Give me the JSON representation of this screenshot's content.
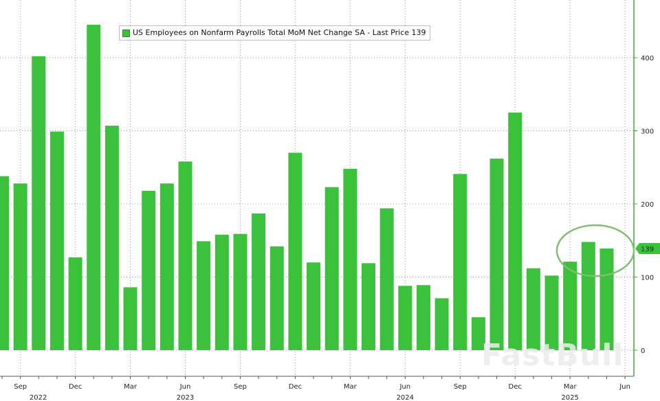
{
  "chart_data": {
    "type": "bar",
    "title": "",
    "legend": "US Employees on Nonfarm Payrolls Total MoM Net Change SA - Last Price 139",
    "legend_placement": "top-left",
    "last_price_label": "139",
    "categories": [
      "Aug 2022",
      "Sep 2022",
      "Oct 2022",
      "Nov 2022",
      "Dec 2022",
      "Jan 2023",
      "Feb 2023",
      "Mar 2023",
      "Apr 2023",
      "May 2023",
      "Jun 2023",
      "Jul 2023",
      "Aug 2023",
      "Sep 2023",
      "Oct 2023",
      "Nov 2023",
      "Dec 2023",
      "Jan 2024",
      "Feb 2024",
      "Mar 2024",
      "Apr 2024",
      "May 2024",
      "Jun 2024",
      "Jul 2024",
      "Aug 2024",
      "Sep 2024",
      "Oct 2024",
      "Nov 2024",
      "Dec 2024",
      "Jan 2025",
      "Feb 2025",
      "Mar 2025",
      "Apr 2025",
      "May 2025"
    ],
    "values": [
      238,
      228,
      402,
      299,
      127,
      445,
      307,
      86,
      218,
      228,
      258,
      149,
      158,
      159,
      187,
      142,
      270,
      120,
      223,
      248,
      119,
      194,
      88,
      89,
      71,
      241,
      45,
      262,
      325,
      112,
      102,
      121,
      148,
      139
    ],
    "ylim": [
      -35,
      470
    ],
    "yticks": [
      0,
      100,
      200,
      300,
      400
    ],
    "x_month_ticks": [
      {
        "label": "Sep",
        "i": 1
      },
      {
        "label": "Dec",
        "i": 4
      },
      {
        "label": "Mar",
        "i": 7
      },
      {
        "label": "Jun",
        "i": 10
      },
      {
        "label": "Sep",
        "i": 13
      },
      {
        "label": "Dec",
        "i": 16
      },
      {
        "label": "Mar",
        "i": 19
      },
      {
        "label": "Jun",
        "i": 22
      },
      {
        "label": "Sep",
        "i": 25
      },
      {
        "label": "Dec",
        "i": 28
      },
      {
        "label": "Mar",
        "i": 31
      },
      {
        "label": "Jun",
        "i": 34
      }
    ],
    "x_year_labels": [
      {
        "label": "2022",
        "i": 1
      },
      {
        "label": "2023",
        "i": 10
      },
      {
        "label": "2024",
        "i": 22
      },
      {
        "label": "2025",
        "i": 31
      }
    ],
    "grid": true,
    "colors": {
      "bar": "#3cc13c",
      "axis": "#3cae3c",
      "highlight": "#7fbf6f"
    }
  },
  "watermark": "FastBull"
}
